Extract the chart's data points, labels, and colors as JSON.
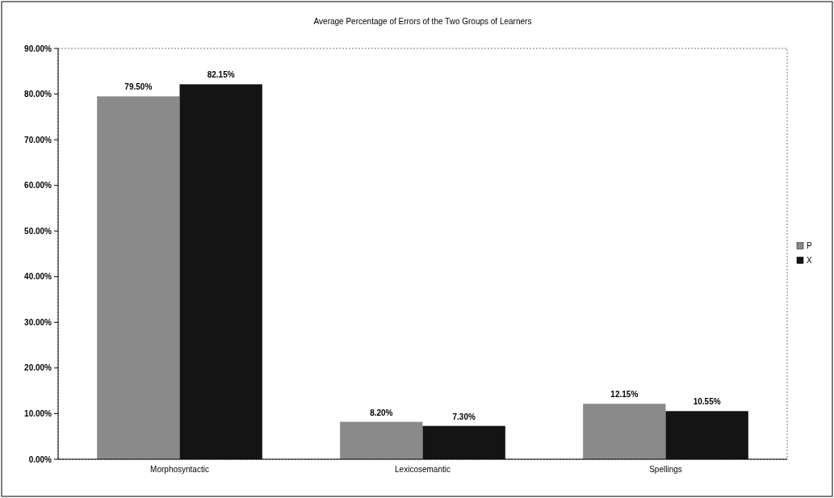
{
  "chart_data": {
    "type": "bar",
    "title": "Average Percentage of Errors of the Two Groups of Learners",
    "categories": [
      "Morphosyntactic",
      "Lexicosemantic",
      "Spellings"
    ],
    "series": [
      {
        "name": "P",
        "color": "#8a8a8a",
        "values": [
          79.5,
          8.2,
          12.15
        ],
        "value_labels": [
          "79.50%",
          "8.20%",
          "12.15%"
        ]
      },
      {
        "name": "X",
        "color": "#141414",
        "values": [
          82.15,
          7.3,
          10.55
        ],
        "value_labels": [
          "82.15%",
          "7.30%",
          "10.55%"
        ]
      }
    ],
    "ylim": [
      0,
      90
    ],
    "yticks": [
      {
        "value": 0,
        "label": "0.00%"
      },
      {
        "value": 10,
        "label": "10.00%"
      },
      {
        "value": 20,
        "label": "20.00%"
      },
      {
        "value": 30,
        "label": "30.00%"
      },
      {
        "value": 40,
        "label": "40.00%"
      },
      {
        "value": 50,
        "label": "50.00%"
      },
      {
        "value": 60,
        "label": "60.00%"
      },
      {
        "value": 70,
        "label": "70.00%"
      },
      {
        "value": 80,
        "label": "80.00%"
      },
      {
        "value": 90,
        "label": "90.00%"
      }
    ],
    "grid": false,
    "legend": "right"
  }
}
